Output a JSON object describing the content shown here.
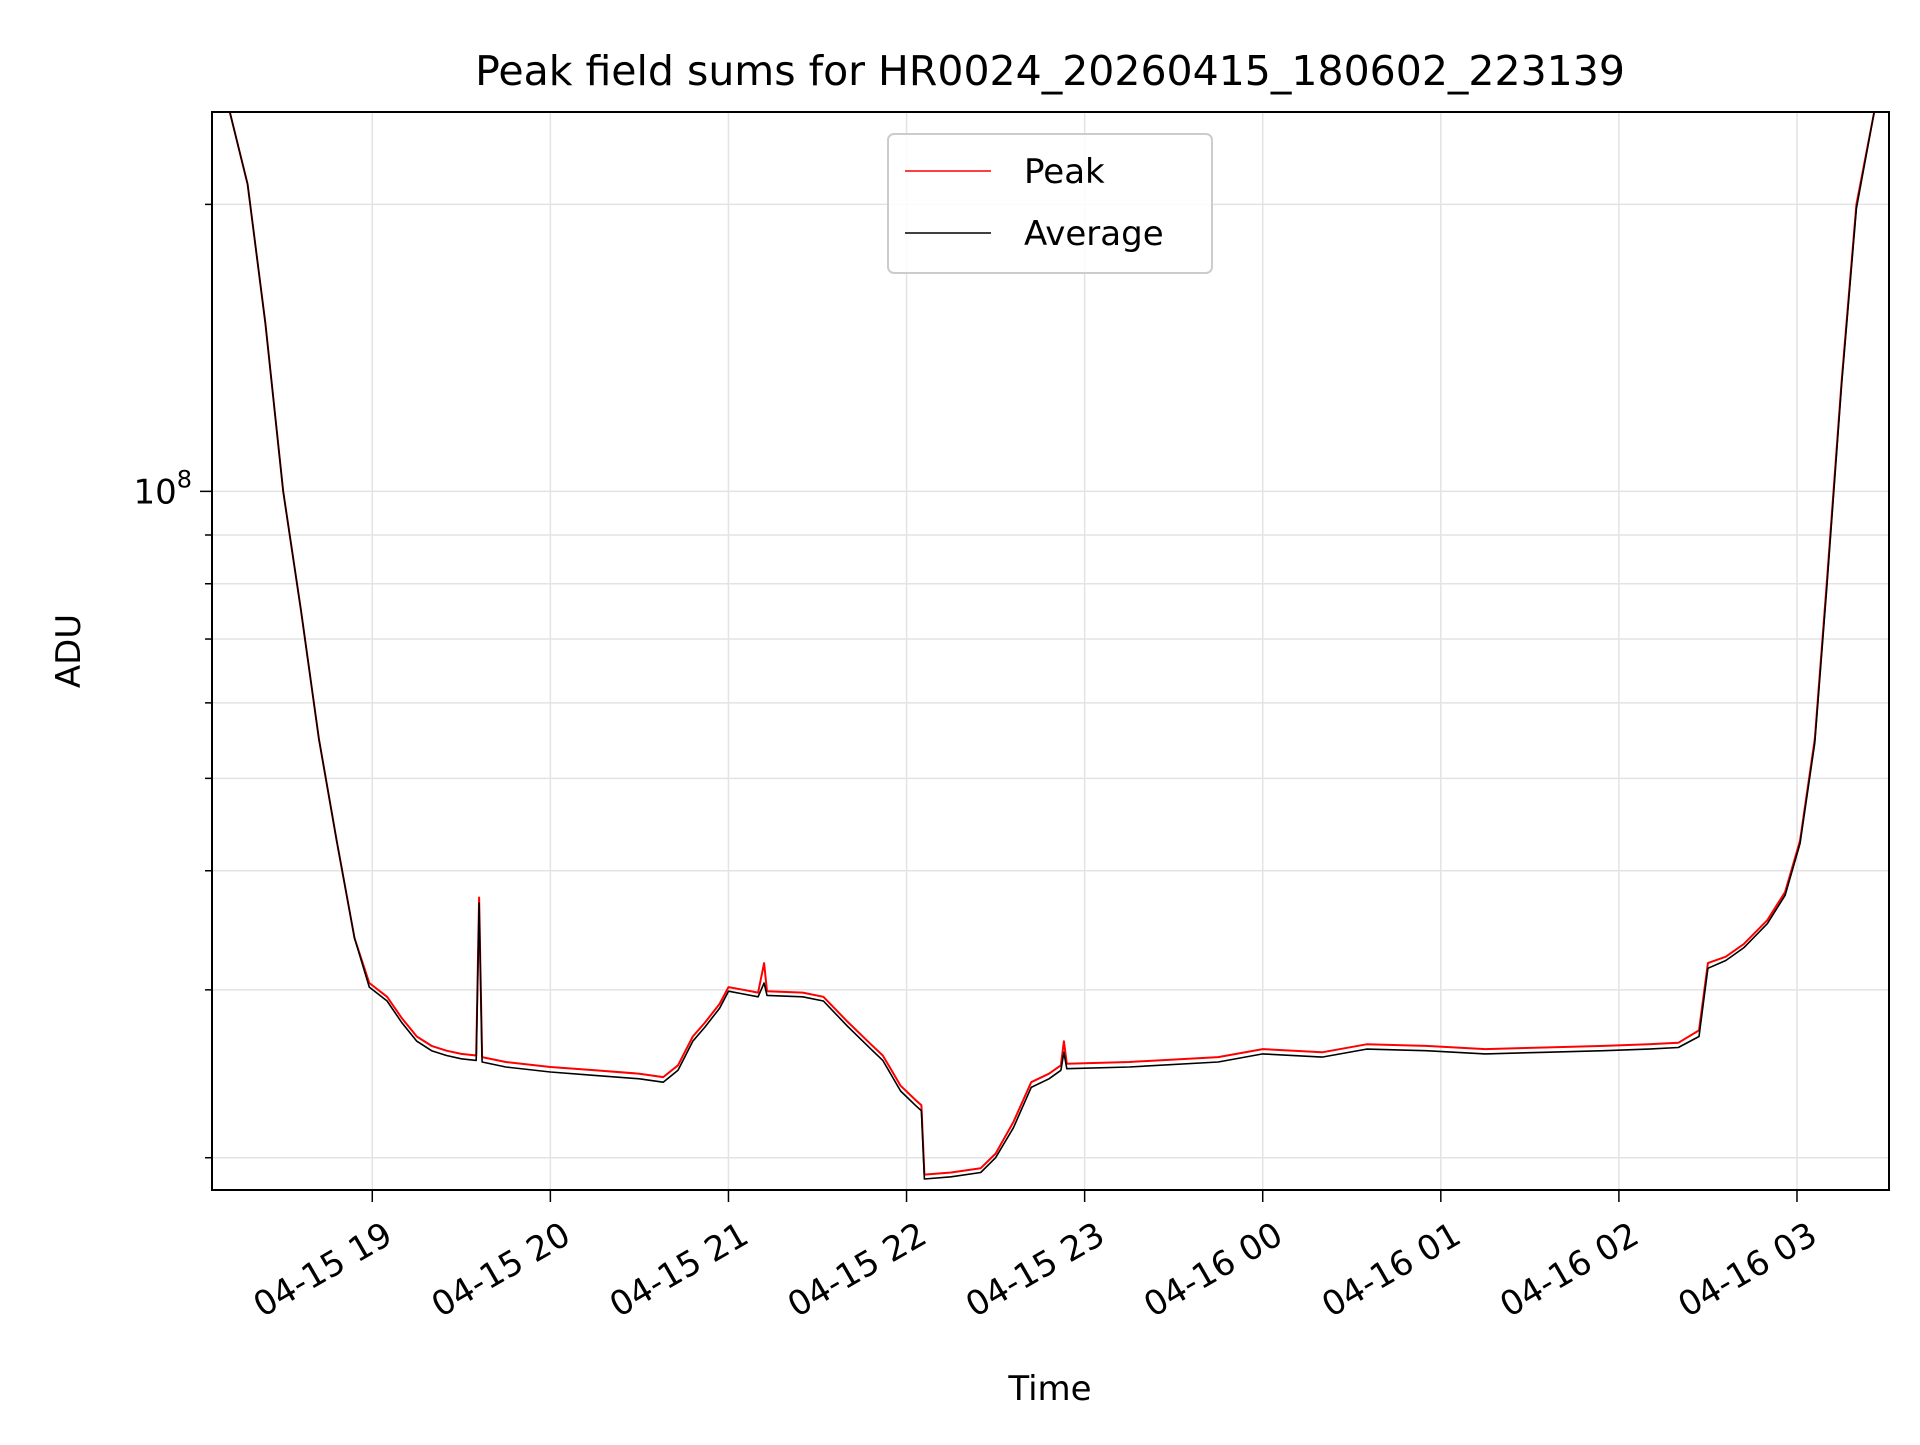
{
  "chart_data": {
    "type": "line",
    "title": "Peak field sums for HR0024_20260415_180602_223139",
    "xlabel": "Time",
    "ylabel": "ADU",
    "yscale": "log",
    "grid": true,
    "legend_position": "top-center",
    "xlim": [
      "2026-04-15 18:06",
      "2026-04-16 03:31"
    ],
    "ylim": [
      18500000,
      250000000
    ],
    "x_ticks": [
      {
        "t": "2026-04-15 19:00",
        "label": "04-15 19"
      },
      {
        "t": "2026-04-15 20:00",
        "label": "04-15 20"
      },
      {
        "t": "2026-04-15 21:00",
        "label": "04-15 21"
      },
      {
        "t": "2026-04-15 22:00",
        "label": "04-15 22"
      },
      {
        "t": "2026-04-15 23:00",
        "label": "04-15 23"
      },
      {
        "t": "2026-04-16 00:00",
        "label": "04-16 00"
      },
      {
        "t": "2026-04-16 01:00",
        "label": "04-16 01"
      },
      {
        "t": "2026-04-16 02:00",
        "label": "04-16 02"
      },
      {
        "t": "2026-04-16 03:00",
        "label": "04-16 03"
      }
    ],
    "y_major_ticks": [
      {
        "value": 100000000,
        "label_base": "10",
        "label_exp": "8"
      }
    ],
    "y_minor_ticks": [
      20000000,
      30000000,
      40000000,
      50000000,
      60000000,
      70000000,
      80000000,
      90000000,
      200000000
    ],
    "series": [
      {
        "name": "Peak",
        "color": "#ff0000",
        "points": [
          [
            "2026-04-15 18:06",
            250000000
          ],
          [
            "2026-04-15 18:12",
            250000000
          ],
          [
            "2026-04-15 18:18",
            210000000
          ],
          [
            "2026-04-15 18:24",
            150000000
          ],
          [
            "2026-04-15 18:30",
            100000000
          ],
          [
            "2026-04-15 18:36",
            75000000
          ],
          [
            "2026-04-15 18:42",
            55000000
          ],
          [
            "2026-04-15 18:48",
            43000000
          ],
          [
            "2026-04-15 18:54",
            34000000
          ],
          [
            "2026-04-15 18:59",
            30500000
          ],
          [
            "2026-04-15 19:05",
            29500000
          ],
          [
            "2026-04-15 19:10",
            28000000
          ],
          [
            "2026-04-15 19:15",
            26800000
          ],
          [
            "2026-04-15 19:20",
            26200000
          ],
          [
            "2026-04-15 19:25",
            25900000
          ],
          [
            "2026-04-15 19:30",
            25700000
          ],
          [
            "2026-04-15 19:35",
            25600000
          ],
          [
            "2026-04-15 19:36",
            37500000
          ],
          [
            "2026-04-15 19:37",
            25500000
          ],
          [
            "2026-04-15 19:45",
            25200000
          ],
          [
            "2026-04-15 20:00",
            24900000
          ],
          [
            "2026-04-15 20:15",
            24700000
          ],
          [
            "2026-04-15 20:30",
            24500000
          ],
          [
            "2026-04-15 20:38",
            24300000
          ],
          [
            "2026-04-15 20:43",
            25000000
          ],
          [
            "2026-04-15 20:48",
            26800000
          ],
          [
            "2026-04-15 20:52",
            27700000
          ],
          [
            "2026-04-15 20:57",
            29000000
          ],
          [
            "2026-04-15 21:00",
            30200000
          ],
          [
            "2026-04-15 21:05",
            30000000
          ],
          [
            "2026-04-15 21:10",
            29800000
          ],
          [
            "2026-04-15 21:12",
            32000000
          ],
          [
            "2026-04-15 21:13",
            29900000
          ],
          [
            "2026-04-15 21:25",
            29800000
          ],
          [
            "2026-04-15 21:32",
            29500000
          ],
          [
            "2026-04-15 21:40",
            27800000
          ],
          [
            "2026-04-15 21:48",
            26300000
          ],
          [
            "2026-04-15 21:52",
            25600000
          ],
          [
            "2026-04-15 21:58",
            23800000
          ],
          [
            "2026-04-15 22:03",
            23000000
          ],
          [
            "2026-04-15 22:05",
            22700000
          ],
          [
            "2026-04-15 22:06",
            19200000
          ],
          [
            "2026-04-15 22:15",
            19300000
          ],
          [
            "2026-04-15 22:25",
            19500000
          ],
          [
            "2026-04-15 22:30",
            20200000
          ],
          [
            "2026-04-15 22:36",
            21800000
          ],
          [
            "2026-04-15 22:42",
            24000000
          ],
          [
            "2026-04-15 22:48",
            24500000
          ],
          [
            "2026-04-15 22:52",
            25000000
          ],
          [
            "2026-04-15 22:53",
            26500000
          ],
          [
            "2026-04-15 22:54",
            25100000
          ],
          [
            "2026-04-15 23:15",
            25200000
          ],
          [
            "2026-04-15 23:45",
            25500000
          ],
          [
            "2026-04-16 00:00",
            26000000
          ],
          [
            "2026-04-16 00:20",
            25800000
          ],
          [
            "2026-04-16 00:35",
            26300000
          ],
          [
            "2026-04-16 00:55",
            26200000
          ],
          [
            "2026-04-16 01:15",
            26000000
          ],
          [
            "2026-04-16 01:35",
            26100000
          ],
          [
            "2026-04-16 01:55",
            26200000
          ],
          [
            "2026-04-16 02:10",
            26300000
          ],
          [
            "2026-04-16 02:20",
            26400000
          ],
          [
            "2026-04-16 02:27",
            27200000
          ],
          [
            "2026-04-16 02:30",
            32000000
          ],
          [
            "2026-04-16 02:36",
            32500000
          ],
          [
            "2026-04-16 02:42",
            33500000
          ],
          [
            "2026-04-16 02:50",
            35500000
          ],
          [
            "2026-04-16 02:56",
            38000000
          ],
          [
            "2026-04-16 03:01",
            43000000
          ],
          [
            "2026-04-16 03:06",
            55000000
          ],
          [
            "2026-04-16 03:10",
            80000000
          ],
          [
            "2026-04-16 03:15",
            130000000
          ],
          [
            "2026-04-16 03:20",
            200000000
          ],
          [
            "2026-04-16 03:26",
            250000000
          ],
          [
            "2026-04-16 03:31",
            250000000
          ]
        ]
      },
      {
        "name": "Average",
        "color": "#000000",
        "points": [
          [
            "2026-04-15 18:06",
            250000000
          ],
          [
            "2026-04-15 18:12",
            250000000
          ],
          [
            "2026-04-15 18:18",
            210000000
          ],
          [
            "2026-04-15 18:24",
            150000000
          ],
          [
            "2026-04-15 18:30",
            100000000
          ],
          [
            "2026-04-15 18:36",
            75000000
          ],
          [
            "2026-04-15 18:42",
            55000000
          ],
          [
            "2026-04-15 18:48",
            43000000
          ],
          [
            "2026-04-15 18:54",
            34000000
          ],
          [
            "2026-04-15 18:59",
            30200000
          ],
          [
            "2026-04-15 19:05",
            29200000
          ],
          [
            "2026-04-15 19:10",
            27700000
          ],
          [
            "2026-04-15 19:15",
            26500000
          ],
          [
            "2026-04-15 19:20",
            25900000
          ],
          [
            "2026-04-15 19:25",
            25600000
          ],
          [
            "2026-04-15 19:30",
            25400000
          ],
          [
            "2026-04-15 19:35",
            25300000
          ],
          [
            "2026-04-15 19:36",
            37000000
          ],
          [
            "2026-04-15 19:37",
            25200000
          ],
          [
            "2026-04-15 19:45",
            24900000
          ],
          [
            "2026-04-15 20:00",
            24600000
          ],
          [
            "2026-04-15 20:15",
            24400000
          ],
          [
            "2026-04-15 20:30",
            24200000
          ],
          [
            "2026-04-15 20:38",
            24000000
          ],
          [
            "2026-04-15 20:43",
            24700000
          ],
          [
            "2026-04-15 20:48",
            26500000
          ],
          [
            "2026-04-15 20:52",
            27400000
          ],
          [
            "2026-04-15 20:57",
            28700000
          ],
          [
            "2026-04-15 21:00",
            29900000
          ],
          [
            "2026-04-15 21:05",
            29700000
          ],
          [
            "2026-04-15 21:10",
            29500000
          ],
          [
            "2026-04-15 21:12",
            30500000
          ],
          [
            "2026-04-15 21:13",
            29600000
          ],
          [
            "2026-04-15 21:25",
            29500000
          ],
          [
            "2026-04-15 21:32",
            29200000
          ],
          [
            "2026-04-15 21:40",
            27500000
          ],
          [
            "2026-04-15 21:48",
            26000000
          ],
          [
            "2026-04-15 21:52",
            25300000
          ],
          [
            "2026-04-15 21:58",
            23500000
          ],
          [
            "2026-04-15 22:03",
            22700000
          ],
          [
            "2026-04-15 22:05",
            22400000
          ],
          [
            "2026-04-15 22:06",
            19000000
          ],
          [
            "2026-04-15 22:15",
            19100000
          ],
          [
            "2026-04-15 22:25",
            19300000
          ],
          [
            "2026-04-15 22:30",
            20000000
          ],
          [
            "2026-04-15 22:36",
            21500000
          ],
          [
            "2026-04-15 22:42",
            23700000
          ],
          [
            "2026-04-15 22:48",
            24200000
          ],
          [
            "2026-04-15 22:52",
            24700000
          ],
          [
            "2026-04-15 22:53",
            25800000
          ],
          [
            "2026-04-15 22:54",
            24800000
          ],
          [
            "2026-04-15 23:15",
            24900000
          ],
          [
            "2026-04-15 23:45",
            25200000
          ],
          [
            "2026-04-16 00:00",
            25700000
          ],
          [
            "2026-04-16 00:20",
            25500000
          ],
          [
            "2026-04-16 00:35",
            26000000
          ],
          [
            "2026-04-16 00:55",
            25900000
          ],
          [
            "2026-04-16 01:15",
            25700000
          ],
          [
            "2026-04-16 01:35",
            25800000
          ],
          [
            "2026-04-16 01:55",
            25900000
          ],
          [
            "2026-04-16 02:10",
            26000000
          ],
          [
            "2026-04-16 02:20",
            26100000
          ],
          [
            "2026-04-16 02:27",
            26800000
          ],
          [
            "2026-04-16 02:30",
            31600000
          ],
          [
            "2026-04-16 02:36",
            32200000
          ],
          [
            "2026-04-16 02:42",
            33200000
          ],
          [
            "2026-04-16 02:50",
            35200000
          ],
          [
            "2026-04-16 02:56",
            37700000
          ],
          [
            "2026-04-16 03:01",
            42700000
          ],
          [
            "2026-04-16 03:06",
            54500000
          ],
          [
            "2026-04-16 03:10",
            79000000
          ],
          [
            "2026-04-16 03:15",
            129000000
          ],
          [
            "2026-04-16 03:20",
            198000000
          ],
          [
            "2026-04-16 03:26",
            250000000
          ],
          [
            "2026-04-16 03:31",
            250000000
          ]
        ]
      }
    ]
  }
}
